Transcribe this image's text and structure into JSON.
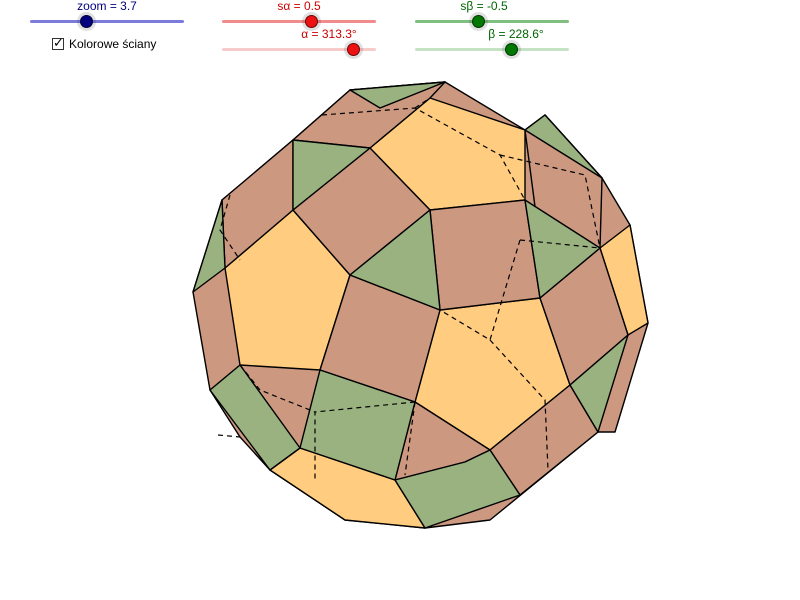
{
  "sliders": {
    "zoom": {
      "label": "zoom = 3.7",
      "value": 3.7,
      "color": "#00007f",
      "track_color": "#7b7bdc"
    },
    "s_alpha": {
      "label": "sα = 0.5",
      "value": 0.5,
      "color": "#cc0000",
      "track_color": "#f08c8c"
    },
    "alpha": {
      "label": "α = 313.3°",
      "value": 313.3,
      "color": "#cc0000",
      "track_color": "#f4b6b6"
    },
    "s_beta": {
      "label": "sβ = -0.5",
      "value": -0.5,
      "color": "#006400",
      "track_color": "#7fbf7f"
    },
    "beta": {
      "label": "β = 228.6°",
      "value": 228.6,
      "color": "#006400",
      "track_color": "#b7d9b7"
    }
  },
  "checkbox": {
    "label": "Kolorowe ściany",
    "checked": true,
    "check_glyph": "✓"
  },
  "colors": {
    "pentagon": "#ffcc80",
    "square": "#cc9880",
    "triangle": "#99b280",
    "edge": "#000000"
  }
}
